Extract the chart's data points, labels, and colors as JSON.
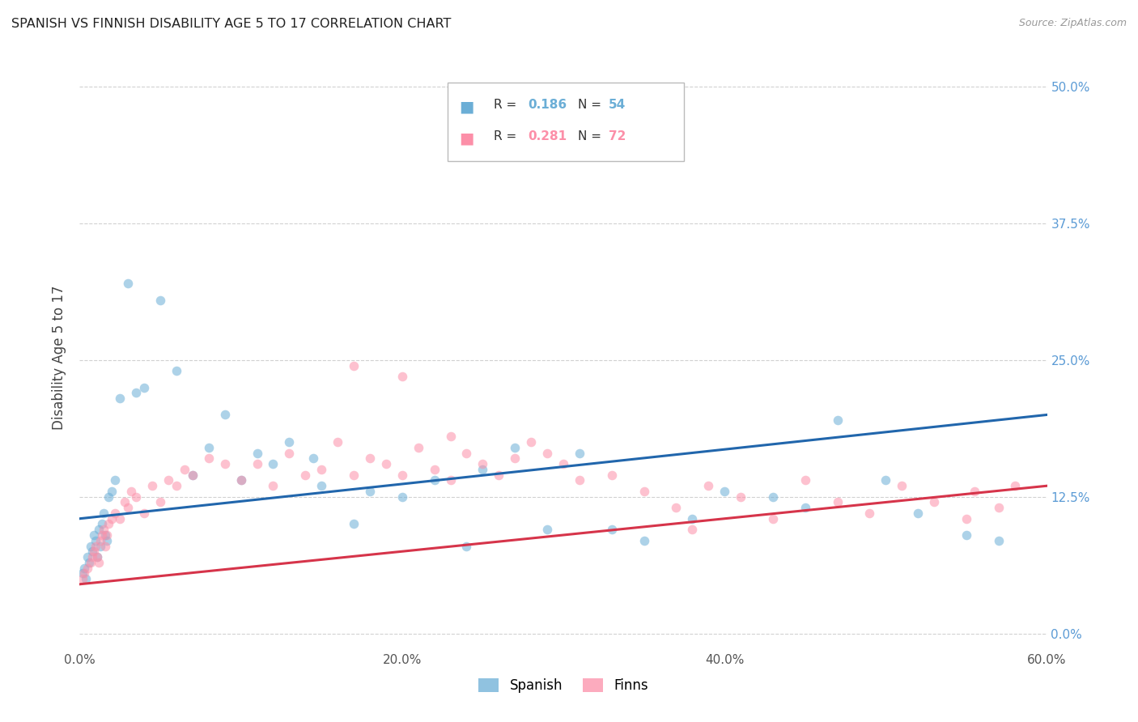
{
  "title": "SPANISH VS FINNISH DISABILITY AGE 5 TO 17 CORRELATION CHART",
  "source": "Source: ZipAtlas.com",
  "ylabel": "Disability Age 5 to 17",
  "xlim": [
    0.0,
    60.0
  ],
  "ylim": [
    -1.5,
    52.0
  ],
  "xlabel_vals": [
    0.0,
    20.0,
    40.0,
    60.0
  ],
  "ylabel_vals": [
    0.0,
    12.5,
    25.0,
    37.5,
    50.0
  ],
  "legend1_R": "0.186",
  "legend1_N": "54",
  "legend2_R": "0.281",
  "legend2_N": "72",
  "blue_line": [
    [
      0.0,
      60.0
    ],
    [
      10.5,
      20.0
    ]
  ],
  "pink_line": [
    [
      0.0,
      60.0
    ],
    [
      4.5,
      13.5
    ]
  ],
  "spanish_x": [
    0.2,
    0.3,
    0.4,
    0.5,
    0.6,
    0.7,
    0.8,
    0.9,
    1.0,
    1.1,
    1.2,
    1.3,
    1.4,
    1.5,
    1.6,
    1.7,
    1.8,
    2.0,
    2.2,
    2.5,
    3.0,
    3.5,
    4.0,
    5.0,
    6.0,
    7.0,
    8.0,
    9.0,
    10.0,
    11.0,
    12.0,
    13.0,
    14.5,
    15.0,
    17.0,
    18.0,
    20.0,
    22.0,
    24.0,
    25.0,
    27.0,
    29.0,
    31.0,
    33.0,
    35.0,
    38.0,
    40.0,
    43.0,
    45.0,
    47.0,
    50.0,
    52.0,
    55.0,
    57.0
  ],
  "spanish_y": [
    5.5,
    6.0,
    5.0,
    7.0,
    6.5,
    8.0,
    7.5,
    9.0,
    8.5,
    7.0,
    9.5,
    8.0,
    10.0,
    11.0,
    9.0,
    8.5,
    12.5,
    13.0,
    14.0,
    21.5,
    32.0,
    22.0,
    22.5,
    30.5,
    24.0,
    14.5,
    17.0,
    20.0,
    14.0,
    16.5,
    15.5,
    17.5,
    16.0,
    13.5,
    10.0,
    13.0,
    12.5,
    14.0,
    8.0,
    15.0,
    17.0,
    9.5,
    16.5,
    9.5,
    8.5,
    10.5,
    13.0,
    12.5,
    11.5,
    19.5,
    14.0,
    11.0,
    9.0,
    8.5
  ],
  "finns_x": [
    0.2,
    0.3,
    0.5,
    0.7,
    0.8,
    0.9,
    1.0,
    1.1,
    1.2,
    1.3,
    1.4,
    1.5,
    1.6,
    1.7,
    1.8,
    2.0,
    2.2,
    2.5,
    2.8,
    3.0,
    3.2,
    3.5,
    4.0,
    4.5,
    5.0,
    5.5,
    6.0,
    6.5,
    7.0,
    8.0,
    9.0,
    10.0,
    11.0,
    12.0,
    13.0,
    14.0,
    15.0,
    16.0,
    17.0,
    18.0,
    19.0,
    20.0,
    21.0,
    22.0,
    23.0,
    24.0,
    25.0,
    26.0,
    27.0,
    28.0,
    29.0,
    30.0,
    31.0,
    33.0,
    35.0,
    37.0,
    39.0,
    41.0,
    43.0,
    45.0,
    47.0,
    49.0,
    51.0,
    53.0,
    55.0,
    57.0,
    58.0,
    55.5,
    20.0,
    23.0,
    17.0,
    38.0
  ],
  "finns_y": [
    5.0,
    5.5,
    6.0,
    6.5,
    7.0,
    7.5,
    8.0,
    7.0,
    6.5,
    8.5,
    9.0,
    9.5,
    8.0,
    9.0,
    10.0,
    10.5,
    11.0,
    10.5,
    12.0,
    11.5,
    13.0,
    12.5,
    11.0,
    13.5,
    12.0,
    14.0,
    13.5,
    15.0,
    14.5,
    16.0,
    15.5,
    14.0,
    15.5,
    13.5,
    16.5,
    14.5,
    15.0,
    17.5,
    14.5,
    16.0,
    15.5,
    14.5,
    17.0,
    15.0,
    14.0,
    16.5,
    15.5,
    14.5,
    16.0,
    17.5,
    16.5,
    15.5,
    14.0,
    14.5,
    13.0,
    11.5,
    13.5,
    12.5,
    10.5,
    14.0,
    12.0,
    11.0,
    13.5,
    12.0,
    10.5,
    11.5,
    13.5,
    13.0,
    23.5,
    18.0,
    24.5,
    9.5
  ],
  "blue_color": "#6BAED6",
  "pink_color": "#FC8FA8",
  "blue_line_color": "#2166AC",
  "pink_line_color": "#D6344A",
  "marker_size": 70,
  "alpha": 0.55,
  "background_color": "#FFFFFF",
  "grid_color": "#CCCCCC",
  "title_color": "#222222",
  "axis_label_color": "#444444",
  "right_tick_color": "#5B9BD5",
  "source_color": "#999999"
}
